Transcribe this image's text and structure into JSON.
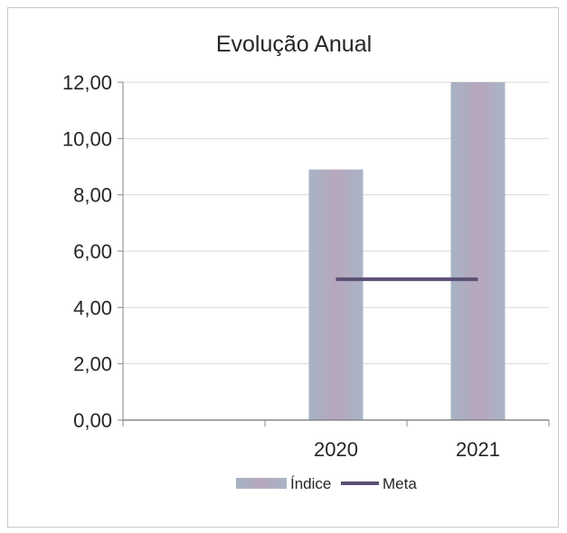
{
  "chart_data": {
    "type": "bar",
    "title": "Evolução Anual",
    "categories": [
      "",
      "2020",
      "2021"
    ],
    "series": [
      {
        "name": "Índice",
        "kind": "bar",
        "values": [
          null,
          8.9,
          12.0
        ]
      },
      {
        "name": "Meta",
        "kind": "line",
        "values": [
          null,
          5.0,
          5.0
        ]
      }
    ],
    "y_ticks": [
      "0,00",
      "2,00",
      "4,00",
      "6,00",
      "8,00",
      "10,00",
      "12,00"
    ],
    "ylim": [
      0,
      12
    ],
    "grid": true,
    "legend_position": "bottom",
    "colors": {
      "bar": "#b3a6bf",
      "bar_shade": "#9fb1c3",
      "line": "#5b4f74",
      "grid": "#d9d9d9",
      "axis": "#868686"
    }
  }
}
